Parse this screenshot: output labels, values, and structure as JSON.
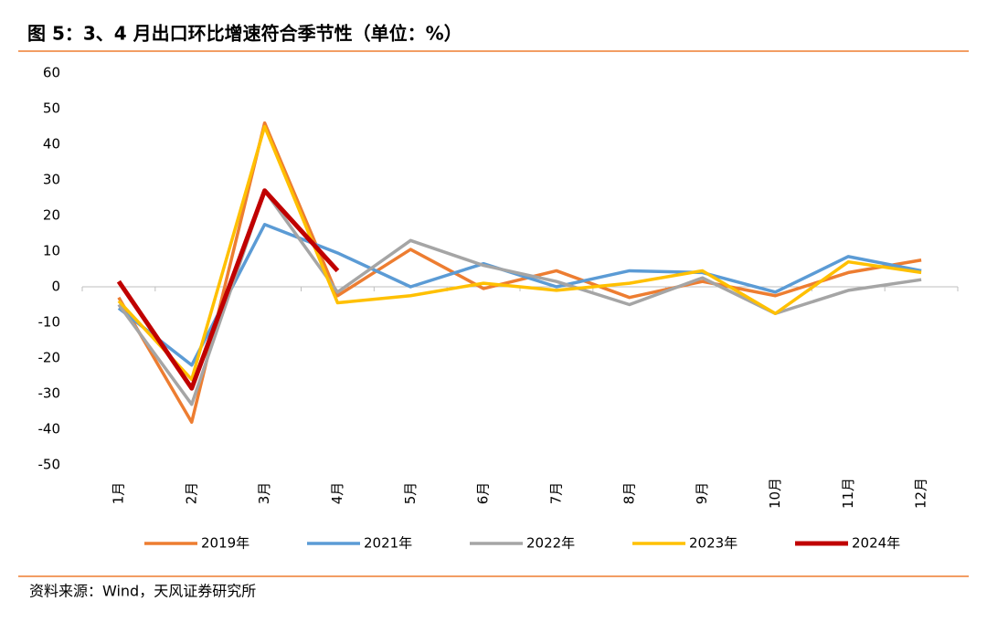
{
  "chart_data": {
    "type": "line",
    "title": "图 5：3、4 月出口环比增速符合季节性（单位：%）",
    "source": "资料来源：Wind，天风证券研究所",
    "categories": [
      "1月",
      "2月",
      "3月",
      "4月",
      "5月",
      "6月",
      "7月",
      "8月",
      "9月",
      "10月",
      "11月",
      "12月"
    ],
    "series": [
      {
        "name": "2019年",
        "color": "#ED7D31",
        "values": [
          -3,
          -38,
          46,
          -2.5,
          10.5,
          -0.5,
          4.5,
          -3,
          1.5,
          -2.5,
          4,
          7.5
        ]
      },
      {
        "name": "2021年",
        "color": "#5B9BD5",
        "values": [
          -6,
          -22,
          17.5,
          9.5,
          0,
          6.5,
          0,
          4.5,
          4,
          -1.5,
          8.5,
          4.5
        ]
      },
      {
        "name": "2022年",
        "color": "#A5A5A5",
        "values": [
          -5,
          -33,
          27,
          -1.5,
          13,
          6,
          1.5,
          -5,
          2.5,
          -7.5,
          -1,
          2
        ]
      },
      {
        "name": "2023年",
        "color": "#FFC000",
        "values": [
          -4,
          -26,
          45,
          -4.5,
          -2.5,
          1,
          -1,
          1,
          4.5,
          -7.5,
          7,
          4
        ]
      },
      {
        "name": "2024年",
        "color": "#C00000",
        "values": [
          1.5,
          -28.5,
          27,
          4.5,
          null,
          null,
          null,
          null,
          null,
          null,
          null,
          null
        ]
      }
    ],
    "ylim": [
      -50,
      60
    ],
    "yticks": [
      -50,
      -40,
      -30,
      -20,
      -10,
      0,
      10,
      20,
      30,
      40,
      50,
      60
    ],
    "grid": false
  }
}
